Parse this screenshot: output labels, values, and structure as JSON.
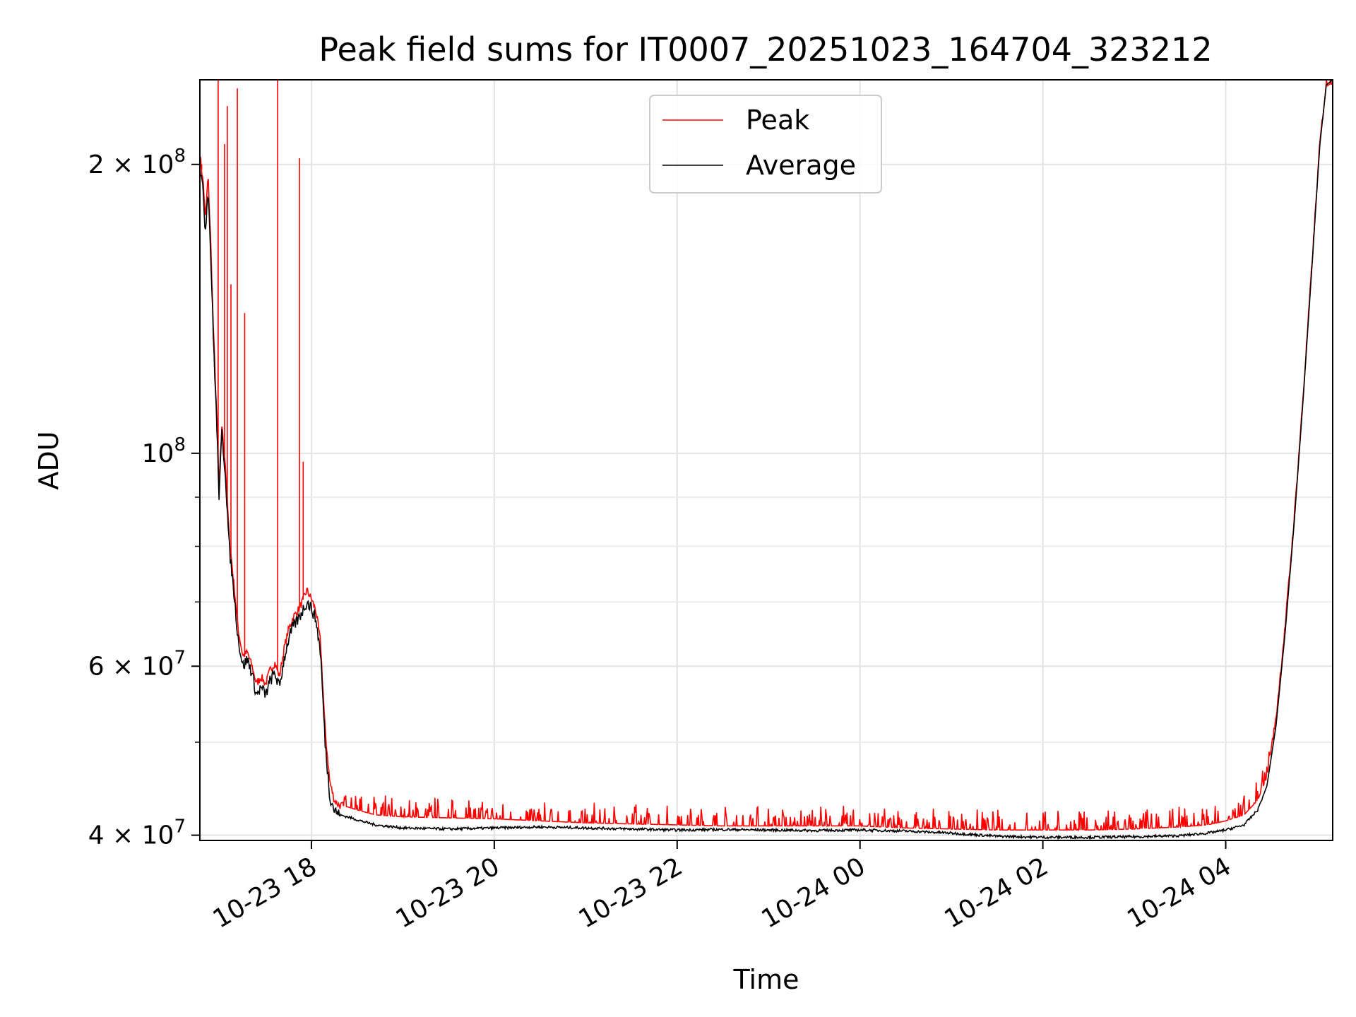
{
  "chart_data": {
    "type": "line",
    "title": "Peak field sums for IT0007_20251023_164704_323212",
    "xlabel": "Time",
    "ylabel": "ADU",
    "y_scale": "log",
    "ylim": [
      39500000,
      245000000
    ],
    "xlim_hours": [
      16.78,
      29.17
    ],
    "x_ticks": [
      {
        "label": "10-23 18",
        "hour": 18
      },
      {
        "label": "10-23 20",
        "hour": 20
      },
      {
        "label": "10-23 22",
        "hour": 22
      },
      {
        "label": "10-24 00",
        "hour": 24
      },
      {
        "label": "10-24 02",
        "hour": 26
      },
      {
        "label": "10-24 04",
        "hour": 28
      }
    ],
    "y_ticks": [
      {
        "mantissa": "4",
        "exp": "7",
        "value": 40000000
      },
      {
        "mantissa": "6",
        "exp": "7",
        "value": 60000000
      },
      {
        "mantissa": "",
        "exp": "8",
        "value": 100000000
      },
      {
        "mantissa": "2",
        "exp": "8",
        "value": 200000000
      }
    ],
    "y_minor_ticks": [
      50000000,
      70000000,
      80000000,
      90000000
    ],
    "grid": true,
    "legend": {
      "placement": "upper-center",
      "entries": [
        "Peak",
        "Average"
      ]
    },
    "series": [
      {
        "name": "Average",
        "color": "#000000",
        "points": [
          [
            16.78,
            200000000
          ],
          [
            16.82,
            185000000
          ],
          [
            16.84,
            170000000
          ],
          [
            16.87,
            190000000
          ],
          [
            16.9,
            160000000
          ],
          [
            16.93,
            130000000
          ],
          [
            16.96,
            110000000
          ],
          [
            16.99,
            90000000
          ],
          [
            17.02,
            105000000
          ],
          [
            17.06,
            95000000
          ],
          [
            17.1,
            80000000
          ],
          [
            17.15,
            72000000
          ],
          [
            17.2,
            64000000
          ],
          [
            17.25,
            60000000
          ],
          [
            17.3,
            61000000
          ],
          [
            17.35,
            59000000
          ],
          [
            17.4,
            56000000
          ],
          [
            17.45,
            57000000
          ],
          [
            17.5,
            56000000
          ],
          [
            17.55,
            58000000
          ],
          [
            17.6,
            59000000
          ],
          [
            17.65,
            57000000
          ],
          [
            17.7,
            61000000
          ],
          [
            17.75,
            64000000
          ],
          [
            17.8,
            66000000
          ],
          [
            17.85,
            67000000
          ],
          [
            17.9,
            68500000
          ],
          [
            17.95,
            70000000
          ],
          [
            18.0,
            69000000
          ],
          [
            18.05,
            67000000
          ],
          [
            18.1,
            62000000
          ],
          [
            18.15,
            50000000
          ],
          [
            18.2,
            44000000
          ],
          [
            18.25,
            42500000
          ],
          [
            18.3,
            42000000
          ],
          [
            18.4,
            41800000
          ],
          [
            18.5,
            41500000
          ],
          [
            18.7,
            41000000
          ],
          [
            19.0,
            40700000
          ],
          [
            19.5,
            40600000
          ],
          [
            20.0,
            40700000
          ],
          [
            20.5,
            40800000
          ],
          [
            21.0,
            40700000
          ],
          [
            21.5,
            40600000
          ],
          [
            22.0,
            40500000
          ],
          [
            22.5,
            40550000
          ],
          [
            23.0,
            40500000
          ],
          [
            23.5,
            40450000
          ],
          [
            24.0,
            40500000
          ],
          [
            24.5,
            40400000
          ],
          [
            25.0,
            40200000
          ],
          [
            25.5,
            39900000
          ],
          [
            26.0,
            39800000
          ],
          [
            26.5,
            39800000
          ],
          [
            27.0,
            39850000
          ],
          [
            27.5,
            39950000
          ],
          [
            27.8,
            40200000
          ],
          [
            28.0,
            40500000
          ],
          [
            28.2,
            41000000
          ],
          [
            28.35,
            42500000
          ],
          [
            28.45,
            45000000
          ],
          [
            28.55,
            52000000
          ],
          [
            28.65,
            65000000
          ],
          [
            28.75,
            85000000
          ],
          [
            28.85,
            115000000
          ],
          [
            28.95,
            160000000
          ],
          [
            29.03,
            210000000
          ],
          [
            29.1,
            242000000
          ],
          [
            29.17,
            245000000
          ]
        ]
      },
      {
        "name": "Peak",
        "color": "#ff0000",
        "points": [
          [
            16.78,
            205000000
          ],
          [
            16.82,
            190000000
          ],
          [
            16.84,
            175000000
          ],
          [
            16.87,
            195000000
          ],
          [
            16.9,
            165000000
          ],
          [
            16.93,
            133000000
          ],
          [
            16.96,
            112000000
          ],
          [
            16.99,
            92000000
          ],
          [
            17.02,
            107000000
          ],
          [
            17.06,
            97000000
          ],
          [
            17.1,
            82000000
          ],
          [
            17.15,
            73500000
          ],
          [
            17.2,
            65500000
          ],
          [
            17.25,
            61500000
          ],
          [
            17.3,
            62000000
          ],
          [
            17.35,
            60000000
          ],
          [
            17.4,
            57500000
          ],
          [
            17.45,
            58500000
          ],
          [
            17.5,
            57500000
          ],
          [
            17.55,
            59500000
          ],
          [
            17.6,
            60500000
          ],
          [
            17.65,
            58500000
          ],
          [
            17.7,
            62500000
          ],
          [
            17.75,
            65500000
          ],
          [
            17.8,
            67500000
          ],
          [
            17.85,
            68500000
          ],
          [
            17.9,
            70000000
          ],
          [
            17.95,
            72000000
          ],
          [
            18.0,
            70500000
          ],
          [
            18.05,
            68500000
          ],
          [
            18.1,
            63500000
          ],
          [
            18.15,
            51500000
          ],
          [
            18.2,
            45500000
          ],
          [
            18.25,
            43500000
          ],
          [
            18.3,
            43000000
          ],
          [
            18.4,
            42800000
          ],
          [
            18.5,
            42500000
          ],
          [
            18.7,
            42000000
          ],
          [
            19.0,
            41800000
          ],
          [
            19.5,
            41700000
          ],
          [
            20.0,
            41600000
          ],
          [
            20.5,
            41400000
          ],
          [
            21.0,
            41200000
          ],
          [
            21.5,
            41100000
          ],
          [
            22.0,
            41000000
          ],
          [
            22.5,
            40900000
          ],
          [
            23.0,
            40900000
          ],
          [
            23.5,
            40900000
          ],
          [
            24.0,
            40900000
          ],
          [
            24.5,
            40700000
          ],
          [
            25.0,
            40600000
          ],
          [
            25.5,
            40500000
          ],
          [
            26.0,
            40500000
          ],
          [
            26.5,
            40500000
          ],
          [
            27.0,
            40600000
          ],
          [
            27.5,
            40800000
          ],
          [
            27.8,
            41000000
          ],
          [
            28.0,
            41400000
          ],
          [
            28.2,
            42000000
          ],
          [
            28.35,
            43500000
          ],
          [
            28.45,
            46000000
          ],
          [
            28.55,
            53000000
          ],
          [
            28.65,
            66000000
          ],
          [
            28.75,
            86000000
          ],
          [
            28.85,
            116000000
          ],
          [
            28.95,
            161000000
          ],
          [
            29.03,
            211000000
          ],
          [
            29.1,
            243000000
          ],
          [
            29.17,
            245000000
          ]
        ],
        "spikes": [
          [
            16.8,
            200000000
          ],
          [
            16.98,
            245000000
          ],
          [
            17.05,
            210000000
          ],
          [
            17.08,
            230000000
          ],
          [
            17.12,
            150000000
          ],
          [
            17.19,
            240000000
          ],
          [
            17.27,
            140000000
          ],
          [
            17.63,
            245000000
          ],
          [
            17.87,
            203000000
          ],
          [
            17.91,
            98000000
          ]
        ]
      }
    ]
  }
}
